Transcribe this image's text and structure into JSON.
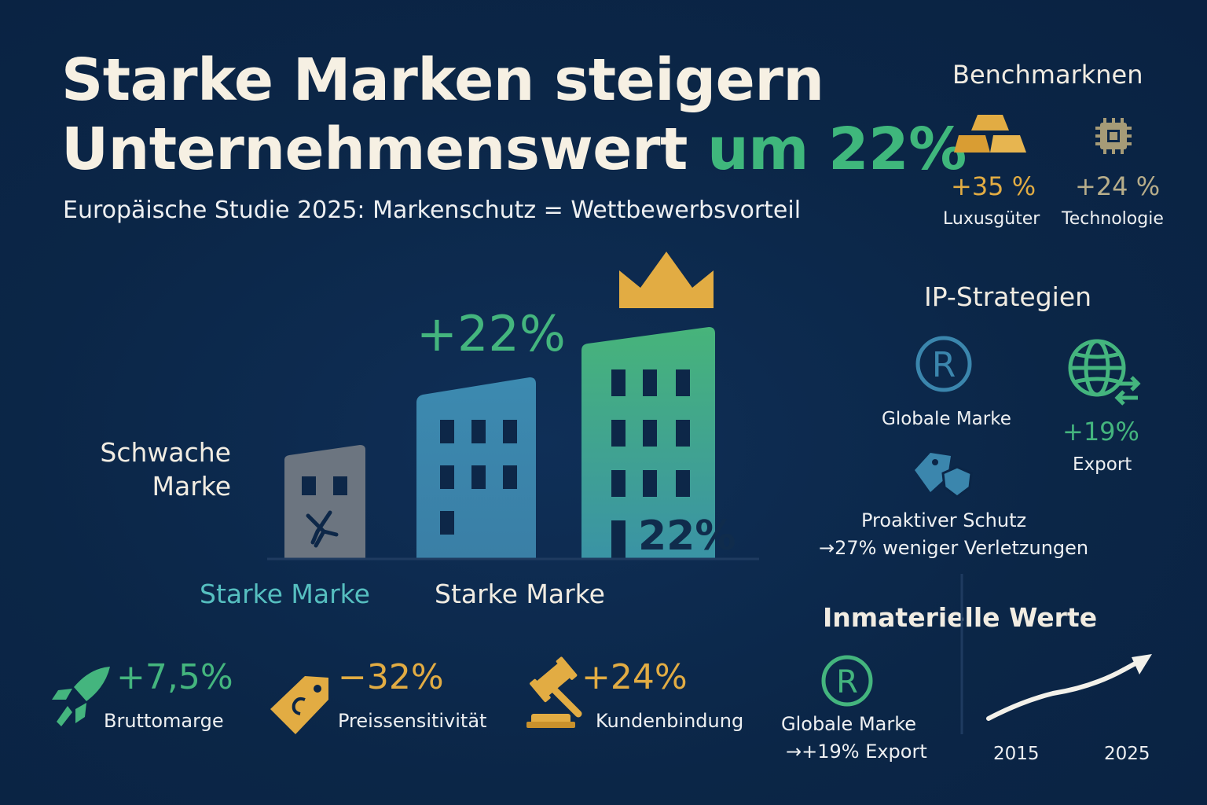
{
  "header": {
    "title_line1": "Starke Marken steigern",
    "title_line2_main": "Unternehmenswert",
    "title_line2_accent": "um 22%",
    "subtitle": "Europäische Studie 2025: Markenschutz = Wettbewerbsvorteil"
  },
  "benchmarks": {
    "title": "Benchmarknen",
    "items": [
      {
        "value": "+35 %",
        "label": "Luxusgüter",
        "icon": "gold-bars-icon"
      },
      {
        "value": "+24 %",
        "label": "Technologie",
        "icon": "chip-icon"
      }
    ]
  },
  "chart": {
    "growth_label": "+22%",
    "bar_inner_label": "22%",
    "weak_label_line1": "Schwache",
    "weak_label_line2": "Marke",
    "strong_label_1": "Starke Marke",
    "strong_label_2": "Starke Marke",
    "colors": {
      "weak": "#6c7580",
      "mid": "#3b86ad",
      "strong": "#47b47a",
      "crown": "#e2ac43"
    }
  },
  "ip_strategies": {
    "title": "IP-Strategien",
    "global_brand": "Globale Marke",
    "export_value": "+19%",
    "export_label": "Export",
    "protection_line1": "Proaktiver Schutz",
    "protection_line2": "→27% weniger Verletzungen"
  },
  "kpis": [
    {
      "value": "+7,5%",
      "label": "Bruttomarge",
      "icon": "rocket-icon",
      "color": "#44b57e"
    },
    {
      "value": "−32%",
      "label": "Preissensitivität",
      "icon": "price-tag-icon",
      "color": "#e2ac43"
    },
    {
      "value": "+24%",
      "label": "Kundenbindung",
      "icon": "gavel-icon",
      "color": "#e2ac43"
    }
  ],
  "intangibles": {
    "title": "Inmaterielle Werte",
    "brand_line1": "Globale Marke",
    "brand_line2": "→+19% Export",
    "year_start": "2015",
    "year_end": "2025"
  }
}
